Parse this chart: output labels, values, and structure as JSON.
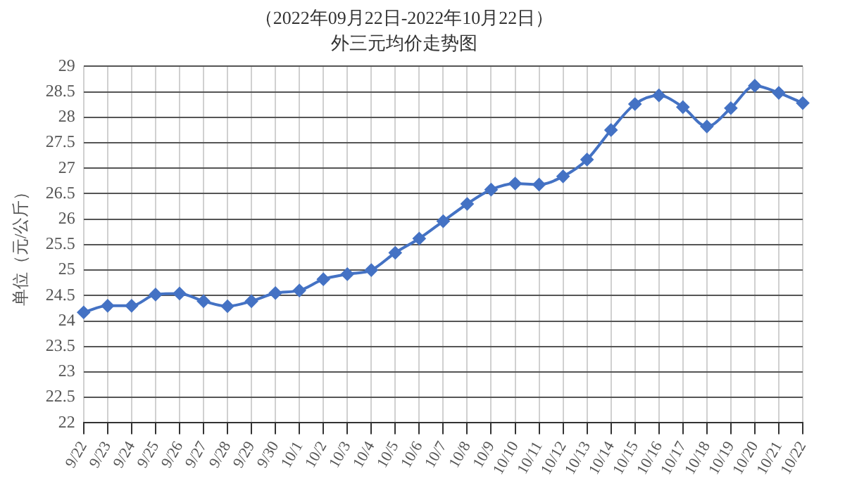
{
  "chart_data": {
    "type": "line",
    "title": "（2022年09月22日-2022年10月22日）",
    "subtitle": "外三元均价走势图",
    "ylabel": "单位（元/公斤）",
    "categories": [
      "9/22",
      "9/23",
      "9/24",
      "9/25",
      "9/26",
      "9/27",
      "9/28",
      "9/29",
      "9/30",
      "10/1",
      "10/2",
      "10/3",
      "10/4",
      "10/5",
      "10/6",
      "10/7",
      "10/8",
      "10/9",
      "10/10",
      "10/11",
      "10/12",
      "10/13",
      "10/14",
      "10/15",
      "10/16",
      "10/17",
      "10/18",
      "10/19",
      "10/20",
      "10/21",
      "10/22"
    ],
    "series": [
      {
        "color": "#4472c4",
        "values": [
          24.17,
          24.3,
          24.3,
          24.52,
          24.54,
          24.39,
          24.29,
          24.39,
          24.55,
          24.6,
          24.82,
          24.92,
          25.0,
          25.34,
          25.62,
          25.96,
          26.3,
          26.58,
          26.7,
          26.68,
          26.84,
          27.17,
          27.75,
          28.26,
          28.43,
          28.2,
          27.82,
          28.18,
          28.62,
          28.48,
          28.28
        ]
      }
    ],
    "ylim": [
      22,
      29
    ],
    "yticks": [
      22,
      22.5,
      23,
      23.5,
      24,
      24.5,
      25,
      25.5,
      26,
      26.5,
      27,
      27.5,
      28,
      28.5,
      29
    ],
    "grid": true,
    "legend": false,
    "marker": "diamond",
    "line_style": "solid"
  }
}
